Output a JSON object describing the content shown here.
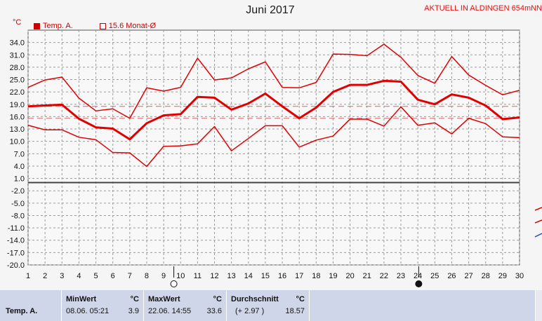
{
  "title": "Juni 2017",
  "station": "AKTUELL IN ALDINGEN 654mNN",
  "unit_label": "°C",
  "legend": {
    "temp_label": "Temp. A.",
    "mean_label": "15.6 Monat-Ø"
  },
  "colors": {
    "line": "#e00000",
    "grid": "#9a9a9a",
    "plot_bg": "#f8f8f8",
    "mean_line": "#e06060",
    "stats_bg": "#cfd6ea"
  },
  "chart_data": {
    "type": "line",
    "title": "Juni 2017",
    "ylabel": "°C",
    "x": [
      1,
      2,
      3,
      4,
      5,
      6,
      7,
      8,
      9,
      10,
      11,
      12,
      13,
      14,
      15,
      16,
      17,
      18,
      19,
      20,
      21,
      22,
      23,
      24,
      25,
      26,
      27,
      28,
      29,
      30
    ],
    "y_ticks": [
      "34.0",
      "31.0",
      "28.0",
      "25.0",
      "22.0",
      "19.0",
      "16.0",
      "13.0",
      "10.0",
      "7.0",
      "4.0",
      "1.0",
      "-2.0",
      "-5.0",
      "-8.0",
      "-11.0",
      "-14.0",
      "-17.0",
      "-20.0"
    ],
    "ylim": [
      -20,
      37
    ],
    "grid": true,
    "reference_lines": [
      15.6,
      18.5
    ],
    "moon_phases": [
      {
        "day": 9.6,
        "phase": "full"
      },
      {
        "day": 24.05,
        "phase": "new"
      }
    ],
    "series": [
      {
        "style": "max",
        "values": [
          23.1,
          24.9,
          25.6,
          20.5,
          17.4,
          17.9,
          15.6,
          23.0,
          22.2,
          23.1,
          30.2,
          24.9,
          25.4,
          27.6,
          29.3,
          23.1,
          23.0,
          24.3,
          31.2,
          31.1,
          30.8,
          33.6,
          30.4,
          26.0,
          24.1,
          30.6,
          26.1,
          23.6,
          21.3,
          22.4
        ]
      },
      {
        "style": "mean",
        "values": [
          18.5,
          18.7,
          18.9,
          15.5,
          13.4,
          13.1,
          10.5,
          14.4,
          16.3,
          16.6,
          20.8,
          20.6,
          17.7,
          19.2,
          21.6,
          18.5,
          15.6,
          18.2,
          22.0,
          23.7,
          23.7,
          24.7,
          24.5,
          20.1,
          19.0,
          21.4,
          20.6,
          18.7,
          15.4,
          15.8
        ]
      },
      {
        "style": "min",
        "values": [
          13.9,
          12.8,
          12.8,
          11.0,
          10.4,
          7.3,
          7.2,
          3.9,
          8.8,
          8.9,
          9.4,
          13.6,
          7.7,
          10.7,
          13.8,
          13.8,
          8.6,
          10.3,
          11.3,
          15.4,
          15.4,
          13.7,
          18.4,
          13.9,
          14.5,
          11.8,
          15.6,
          14.3,
          11.1,
          10.9
        ]
      }
    ]
  },
  "stats": {
    "row_label": "Temp. A.",
    "min": {
      "header": "MinWert",
      "unit": "°C",
      "datetime": "08.06.  05:21",
      "value": "3.9"
    },
    "max": {
      "header": "MaxWert",
      "unit": "°C",
      "datetime": "22.06.  14:55",
      "value": "33.6"
    },
    "avg": {
      "header": "Durchschnitt",
      "unit": "°C",
      "delta": "(+ 2.97 )",
      "value": "18.57"
    }
  }
}
